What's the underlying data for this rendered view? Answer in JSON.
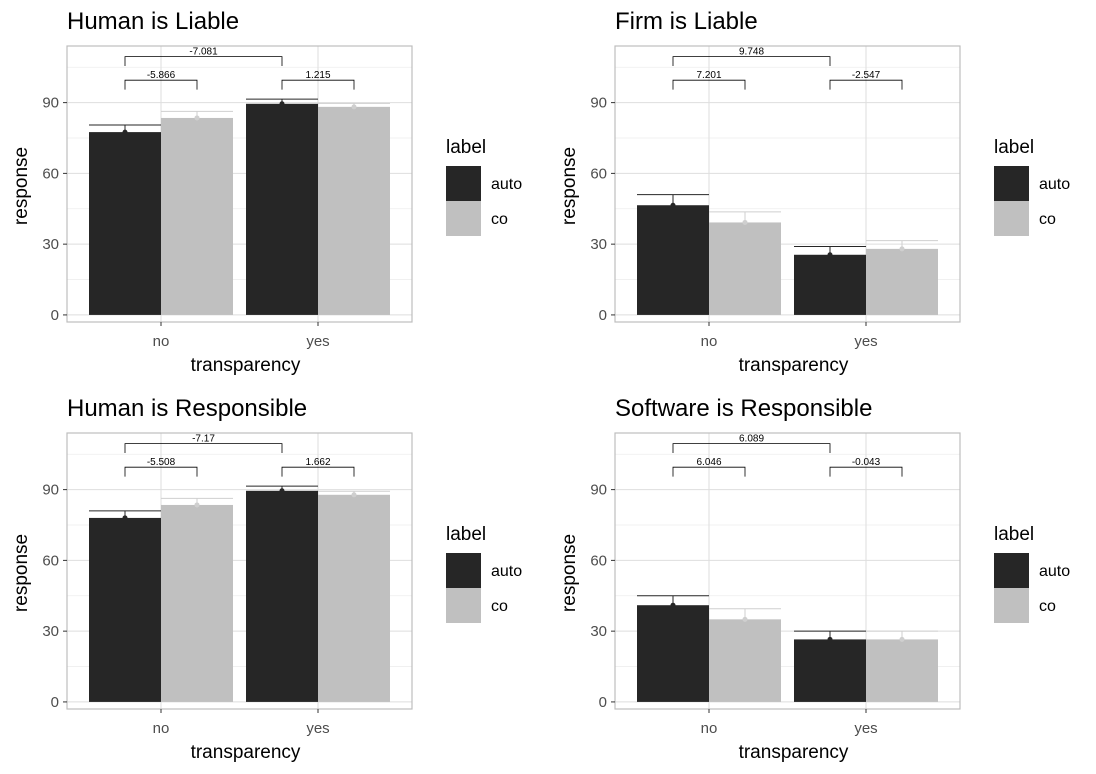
{
  "colors": {
    "auto": "#262626",
    "co": "#c0c0c0",
    "grid_major": "#dedede",
    "grid_minor": "#eeeeee",
    "frame": "#bdbdbd",
    "bracket": "#000000"
  },
  "chart_data": [
    {
      "type": "bar",
      "title": "Human is Liable",
      "xlabel": "transparency",
      "ylabel": "response",
      "categories": [
        "no",
        "yes"
      ],
      "ylim": [
        -3,
        114
      ],
      "yticks": [
        0,
        30,
        60,
        90
      ],
      "legend": {
        "title": "label",
        "placement": "right"
      },
      "series": [
        {
          "name": "auto",
          "values": [
            77.5,
            89.5
          ],
          "errors": [
            3.0,
            2.0
          ]
        },
        {
          "name": "co",
          "values": [
            83.5,
            88.2
          ],
          "errors": [
            2.8,
            1.5
          ]
        }
      ],
      "comparisons": [
        {
          "text": "-5.866",
          "from": "no:auto",
          "to": "no:co",
          "level": 1
        },
        {
          "text": "1.215",
          "from": "yes:auto",
          "to": "yes:co",
          "level": 1
        },
        {
          "text": "-7.081",
          "from": "no:auto",
          "to": "yes:auto",
          "level": 2
        }
      ]
    },
    {
      "type": "bar",
      "title": "Firm is Liable",
      "xlabel": "transparency",
      "ylabel": "response",
      "categories": [
        "no",
        "yes"
      ],
      "ylim": [
        -3,
        114
      ],
      "yticks": [
        0,
        30,
        60,
        90
      ],
      "legend": {
        "title": "label",
        "placement": "right"
      },
      "series": [
        {
          "name": "auto",
          "values": [
            46.5,
            25.5
          ],
          "errors": [
            4.5,
            3.5
          ]
        },
        {
          "name": "co",
          "values": [
            39.2,
            28.0
          ],
          "errors": [
            4.5,
            3.5
          ]
        }
      ],
      "comparisons": [
        {
          "text": "7.201",
          "from": "no:auto",
          "to": "no:co",
          "level": 1
        },
        {
          "text": "-2.547",
          "from": "yes:auto",
          "to": "yes:co",
          "level": 1
        },
        {
          "text": "9.748",
          "from": "no:auto",
          "to": "yes:auto",
          "level": 2
        }
      ]
    },
    {
      "type": "bar",
      "title": "Human is Responsible",
      "xlabel": "transparency",
      "ylabel": "response",
      "categories": [
        "no",
        "yes"
      ],
      "ylim": [
        -3,
        114
      ],
      "yticks": [
        0,
        30,
        60,
        90
      ],
      "legend": {
        "title": "label",
        "placement": "right"
      },
      "series": [
        {
          "name": "auto",
          "values": [
            78.0,
            89.5
          ],
          "errors": [
            3.0,
            2.0
          ]
        },
        {
          "name": "co",
          "values": [
            83.5,
            87.8
          ],
          "errors": [
            2.8,
            1.5
          ]
        }
      ],
      "comparisons": [
        {
          "text": "-5.508",
          "from": "no:auto",
          "to": "no:co",
          "level": 1
        },
        {
          "text": "1.662",
          "from": "yes:auto",
          "to": "yes:co",
          "level": 1
        },
        {
          "text": "-7.17",
          "from": "no:auto",
          "to": "yes:auto",
          "level": 2
        }
      ]
    },
    {
      "type": "bar",
      "title": "Software is Responsible",
      "xlabel": "transparency",
      "ylabel": "response",
      "categories": [
        "no",
        "yes"
      ],
      "ylim": [
        -3,
        114
      ],
      "yticks": [
        0,
        30,
        60,
        90
      ],
      "legend": {
        "title": "label",
        "placement": "right"
      },
      "series": [
        {
          "name": "auto",
          "values": [
            41.0,
            26.5
          ],
          "errors": [
            4.0,
            3.5
          ]
        },
        {
          "name": "co",
          "values": [
            35.0,
            26.5
          ],
          "errors": [
            4.5,
            3.5
          ]
        }
      ],
      "comparisons": [
        {
          "text": "6.046",
          "from": "no:auto",
          "to": "no:co",
          "level": 1
        },
        {
          "text": "-0.043",
          "from": "yes:auto",
          "to": "yes:co",
          "level": 1
        },
        {
          "text": "6.089",
          "from": "no:auto",
          "to": "yes:auto",
          "level": 2
        }
      ]
    }
  ]
}
